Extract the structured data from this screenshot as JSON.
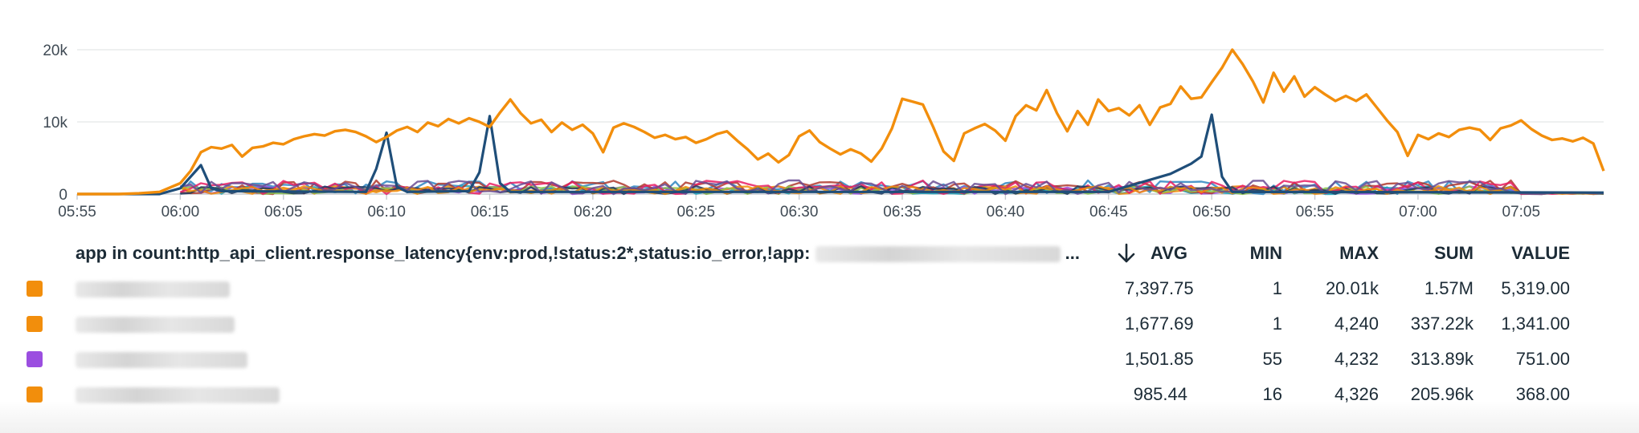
{
  "chart_data": {
    "type": "line",
    "title": "",
    "xlabel": "",
    "ylabel": "",
    "ylim": [
      0,
      20000
    ],
    "xlim": [
      "05:55",
      "07:09"
    ],
    "y_ticks": [
      {
        "value": 0,
        "label": "0"
      },
      {
        "value": 10000,
        "label": "10k"
      },
      {
        "value": 20000,
        "label": "20k"
      }
    ],
    "x_ticks": [
      {
        "value": "05:55",
        "label": "05:55"
      },
      {
        "value": "06:00",
        "label": "06:00"
      },
      {
        "value": "06:05",
        "label": "06:05"
      },
      {
        "value": "06:10",
        "label": "06:10"
      },
      {
        "value": "06:15",
        "label": "06:15"
      },
      {
        "value": "06:20",
        "label": "06:20"
      },
      {
        "value": "06:25",
        "label": "06:25"
      },
      {
        "value": "06:30",
        "label": "06:30"
      },
      {
        "value": "06:35",
        "label": "06:35"
      },
      {
        "value": "06:40",
        "label": "06:40"
      },
      {
        "value": "06:45",
        "label": "06:45"
      },
      {
        "value": "06:50",
        "label": "06:50"
      },
      {
        "value": "06:55",
        "label": "06:55"
      },
      {
        "value": "07:00",
        "label": "07:00"
      },
      {
        "value": "07:05",
        "label": "07:05"
      }
    ],
    "grid": true,
    "legend_placement": "bottom",
    "series": [
      {
        "color": "#f28e0c",
        "points": [
          [
            "05:55",
            0
          ],
          [
            "05:57",
            0
          ],
          [
            "05:58",
            100
          ],
          [
            "05:59",
            300
          ],
          [
            "06:00",
            1500
          ],
          [
            "06:00:30",
            3200
          ],
          [
            "06:01",
            5800
          ],
          [
            "06:01:30",
            6500
          ],
          [
            "06:02",
            6300
          ],
          [
            "06:02:30",
            6800
          ],
          [
            "06:03",
            5200
          ],
          [
            "06:03:30",
            6400
          ],
          [
            "06:04",
            6600
          ],
          [
            "06:04:30",
            7100
          ],
          [
            "06:05",
            6900
          ],
          [
            "06:05:30",
            7600
          ],
          [
            "06:06",
            8000
          ],
          [
            "06:06:30",
            8300
          ],
          [
            "06:07",
            8100
          ],
          [
            "06:07:30",
            8700
          ],
          [
            "06:08",
            8900
          ],
          [
            "06:08:30",
            8600
          ],
          [
            "06:09",
            8000
          ],
          [
            "06:09:30",
            7200
          ],
          [
            "06:10",
            7900
          ],
          [
            "06:10:30",
            8800
          ],
          [
            "06:11",
            9300
          ],
          [
            "06:11:30",
            8600
          ],
          [
            "06:12",
            9900
          ],
          [
            "06:12:30",
            9400
          ],
          [
            "06:13",
            10400
          ],
          [
            "06:13:30",
            9800
          ],
          [
            "06:14",
            10500
          ],
          [
            "06:14:30",
            10000
          ],
          [
            "06:15",
            9300
          ],
          [
            "06:15:30",
            11300
          ],
          [
            "06:16",
            13100
          ],
          [
            "06:16:30",
            11200
          ],
          [
            "06:17",
            9800
          ],
          [
            "06:17:30",
            10300
          ],
          [
            "06:18",
            8600
          ],
          [
            "06:18:30",
            9900
          ],
          [
            "06:19",
            8900
          ],
          [
            "06:19:30",
            9600
          ],
          [
            "06:20",
            8400
          ],
          [
            "06:20:30",
            5800
          ],
          [
            "06:21",
            9200
          ],
          [
            "06:21:30",
            9800
          ],
          [
            "06:22",
            9300
          ],
          [
            "06:22:30",
            8600
          ],
          [
            "06:23",
            7800
          ],
          [
            "06:23:30",
            8200
          ],
          [
            "06:24",
            7600
          ],
          [
            "06:24:30",
            7900
          ],
          [
            "06:25",
            7100
          ],
          [
            "06:25:30",
            7600
          ],
          [
            "06:26",
            8300
          ],
          [
            "06:26:30",
            8700
          ],
          [
            "06:27",
            7400
          ],
          [
            "06:27:30",
            6200
          ],
          [
            "06:28",
            4800
          ],
          [
            "06:28:30",
            5600
          ],
          [
            "06:29",
            4400
          ],
          [
            "06:29:30",
            5400
          ],
          [
            "06:30",
            8000
          ],
          [
            "06:30:30",
            8800
          ],
          [
            "06:31",
            7200
          ],
          [
            "06:31:30",
            6300
          ],
          [
            "06:32",
            5500
          ],
          [
            "06:32:30",
            6200
          ],
          [
            "06:33",
            5600
          ],
          [
            "06:33:30",
            4500
          ],
          [
            "06:34",
            6300
          ],
          [
            "06:34:30",
            9100
          ],
          [
            "06:35",
            13200
          ],
          [
            "06:35:30",
            12800
          ],
          [
            "06:36",
            12400
          ],
          [
            "06:36:30",
            9300
          ],
          [
            "06:37",
            5900
          ],
          [
            "06:37:30",
            4600
          ],
          [
            "06:38",
            8400
          ],
          [
            "06:38:30",
            9100
          ],
          [
            "06:39",
            9700
          ],
          [
            "06:39:30",
            8800
          ],
          [
            "06:40",
            7400
          ],
          [
            "06:40:30",
            10800
          ],
          [
            "06:41",
            12300
          ],
          [
            "06:41:30",
            11600
          ],
          [
            "06:42",
            14400
          ],
          [
            "06:42:30",
            11200
          ],
          [
            "06:43",
            8700
          ],
          [
            "06:43:30",
            11500
          ],
          [
            "06:44",
            9600
          ],
          [
            "06:44:30",
            13100
          ],
          [
            "06:45",
            11500
          ],
          [
            "06:45:30",
            11900
          ],
          [
            "06:46",
            10900
          ],
          [
            "06:46:30",
            12300
          ],
          [
            "06:47",
            9600
          ],
          [
            "06:47:30",
            12000
          ],
          [
            "06:48",
            12500
          ],
          [
            "06:48:30",
            14900
          ],
          [
            "06:49",
            13200
          ],
          [
            "06:49:30",
            13400
          ],
          [
            "06:50",
            15500
          ],
          [
            "06:50:30",
            17500
          ],
          [
            "06:51",
            20000
          ],
          [
            "06:51:30",
            18000
          ],
          [
            "06:52",
            15600
          ],
          [
            "06:52:30",
            12700
          ],
          [
            "06:53",
            16800
          ],
          [
            "06:53:30",
            14200
          ],
          [
            "06:54",
            16300
          ],
          [
            "06:54:30",
            13500
          ],
          [
            "06:55",
            14800
          ],
          [
            "06:55:30",
            13800
          ],
          [
            "06:56",
            12900
          ],
          [
            "06:56:30",
            13600
          ],
          [
            "06:57",
            12900
          ],
          [
            "06:57:30",
            13800
          ],
          [
            "06:58",
            12000
          ],
          [
            "06:58:30",
            10200
          ],
          [
            "06:59",
            8600
          ],
          [
            "06:59:30",
            5300
          ],
          [
            "07:00",
            8200
          ],
          [
            "07:00:30",
            7600
          ],
          [
            "07:01",
            8400
          ],
          [
            "07:01:30",
            7900
          ],
          [
            "07:02",
            8900
          ],
          [
            "07:02:30",
            9200
          ],
          [
            "07:03",
            8900
          ],
          [
            "07:03:30",
            7500
          ],
          [
            "07:04",
            9100
          ],
          [
            "07:04:30",
            9500
          ],
          [
            "07:05",
            10200
          ],
          [
            "07:05:30",
            9000
          ],
          [
            "07:06",
            8100
          ],
          [
            "07:06:30",
            7500
          ],
          [
            "07:07",
            7700
          ],
          [
            "07:07:30",
            7300
          ],
          [
            "07:08",
            7800
          ],
          [
            "07:08:30",
            7000
          ],
          [
            "07:09",
            3200
          ]
        ]
      }
    ]
  },
  "legend": {
    "query": "app in count:http_api_client.response_latency{env:prod,!status:2*,status:io_error,!app:",
    "ellipsis": "...",
    "sort_icon": "arrow-down-icon",
    "columns": {
      "avg": "AVG",
      "min": "MIN",
      "max": "MAX",
      "sum": "SUM",
      "value": "VALUE"
    },
    "rows": [
      {
        "color": "#f28e0c",
        "avg": "7,397.75",
        "min": "1",
        "max": "20.01k",
        "sum": "1.57M",
        "value": "5,319.00"
      },
      {
        "color": "#f28e0c",
        "avg": "1,677.69",
        "min": "1",
        "max": "4,240",
        "sum": "337.22k",
        "value": "1,341.00"
      },
      {
        "color": "#9b4ee0",
        "avg": "1,501.85",
        "min": "55",
        "max": "4,232",
        "sum": "313.89k",
        "value": "751.00"
      },
      {
        "color": "#f28e0c",
        "avg": "985.44",
        "min": "16",
        "max": "4,326",
        "sum": "205.96k",
        "value": "368.00"
      }
    ]
  }
}
